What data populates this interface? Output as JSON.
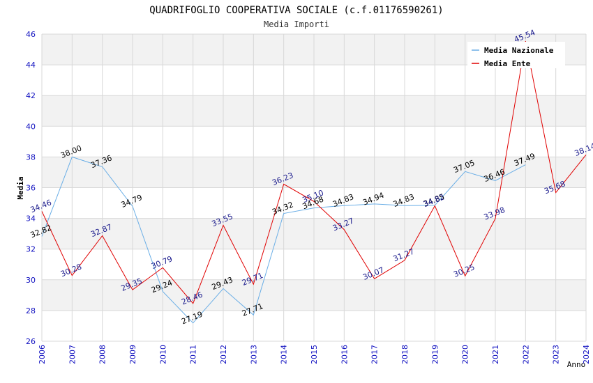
{
  "chart_data": {
    "type": "line",
    "title": "QUADRIFOGLIO COOPERATIVA SOCIALE (c.f.01176590261)",
    "subtitle": "Media Importi",
    "xlabel": "Anno",
    "ylabel": "Media",
    "ylim": [
      26,
      46
    ],
    "yticks": [
      26,
      28,
      30,
      32,
      34,
      36,
      38,
      40,
      42,
      44,
      46
    ],
    "categories": [
      "2006",
      "2007",
      "2008",
      "2009",
      "2010",
      "2011",
      "2012",
      "2013",
      "2014",
      "2015",
      "2016",
      "2017",
      "2018",
      "2019",
      "2020",
      "2021",
      "2022",
      "2023",
      "2024"
    ],
    "legend_position": "top-right",
    "grid": true,
    "series": [
      {
        "name": "Media Nazionale",
        "color": "#6aaee6",
        "label_color": "#000000",
        "values": [
          32.82,
          38.0,
          37.36,
          34.79,
          29.24,
          27.19,
          29.43,
          27.71,
          34.32,
          34.68,
          34.83,
          34.94,
          34.83,
          34.85,
          37.05,
          36.46,
          37.49,
          null,
          null
        ],
        "labels": [
          "32.82",
          "38.00",
          "37.36",
          "34.79",
          "29.24",
          "27.19",
          "29.43",
          "27.71",
          "34.32",
          "34.68",
          "34.83",
          "34.94",
          "34.83",
          "34.85",
          "37.05",
          "36.46",
          "37.49",
          "",
          ""
        ]
      },
      {
        "name": "Media Ente",
        "color": "#e00000",
        "label_color": "#1a1a8c",
        "values": [
          34.46,
          30.28,
          32.87,
          29.35,
          30.79,
          28.46,
          33.55,
          29.71,
          36.23,
          35.1,
          33.27,
          30.07,
          31.27,
          34.82,
          30.25,
          33.98,
          45.54,
          35.68,
          38.14
        ],
        "labels": [
          "34.46",
          "30.28",
          "32.87",
          "29.35",
          "30.79",
          "28.46",
          "33.55",
          "29.71",
          "36.23",
          "35.10",
          "33.27",
          "30.07",
          "31.27",
          "34.82",
          "30.25",
          "33.98",
          "45.54",
          "35.68",
          "38.14"
        ]
      }
    ]
  }
}
